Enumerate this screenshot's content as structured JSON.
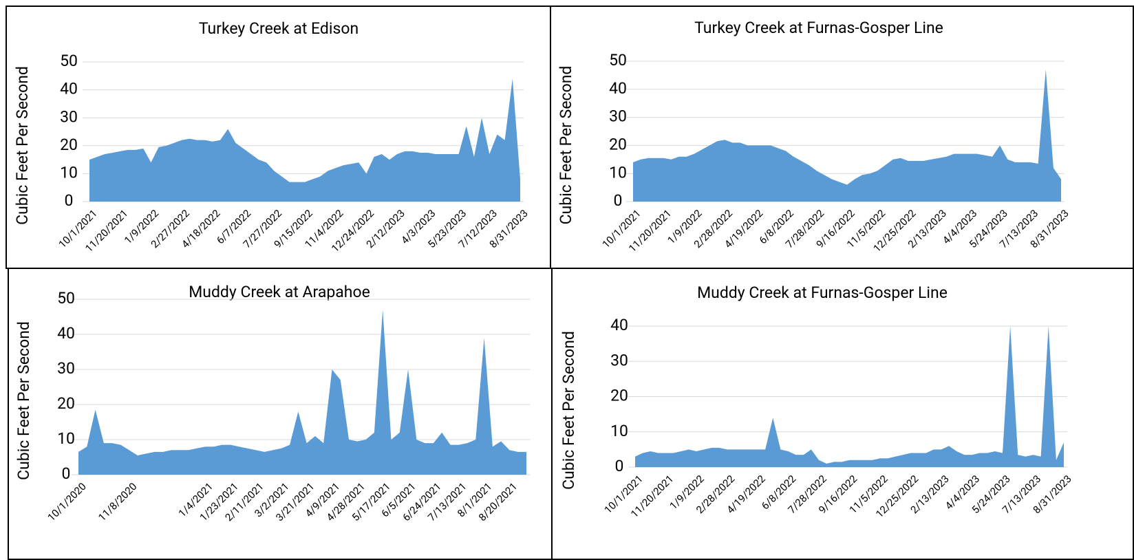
{
  "chart_data": [
    {
      "type": "area",
      "title": "Turkey Creek at Edison",
      "y_label": "Cubic Feet Per Second",
      "color": "#5b9bd5",
      "ylim": [
        0,
        50
      ],
      "yticks": [
        0,
        10,
        20,
        30,
        40,
        50
      ],
      "grid": true,
      "categories": [
        "10/1/2021",
        null,
        null,
        null,
        "11/20/2021",
        null,
        null,
        null,
        "1/9/2022",
        null,
        null,
        null,
        "2/27/2022",
        null,
        null,
        null,
        "4/18/2022",
        null,
        null,
        null,
        "6/7/2022",
        null,
        null,
        null,
        "7/27/2022",
        null,
        null,
        null,
        "9/15/2022",
        null,
        null,
        null,
        "11/4/2022",
        null,
        null,
        null,
        "12/24/2022",
        null,
        null,
        null,
        "2/12/2023",
        null,
        null,
        null,
        "4/3/2023",
        null,
        null,
        null,
        "5/23/2023",
        null,
        null,
        null,
        "7/12/2023",
        null,
        null,
        null,
        "8/31/2023"
      ],
      "values": [
        15,
        16,
        17,
        17.5,
        18,
        18.5,
        18.5,
        19,
        14,
        19.5,
        20,
        21,
        22,
        22.5,
        22,
        22,
        21.5,
        22,
        26,
        21,
        19,
        17,
        15,
        14,
        11,
        9,
        7,
        7,
        7,
        8,
        9,
        11,
        12,
        13,
        13.5,
        14,
        10,
        16,
        17,
        15,
        17,
        18,
        18,
        17.5,
        17.5,
        17,
        17,
        17,
        17,
        27,
        16,
        30,
        17,
        24,
        22,
        44,
        8
      ]
    },
    {
      "type": "area",
      "title": "Turkey Creek at Furnas-Gosper Line",
      "y_label": "Cubic Feet Per Second",
      "color": "#5b9bd5",
      "ylim": [
        0,
        50
      ],
      "yticks": [
        0,
        10,
        20,
        30,
        40,
        50
      ],
      "grid": true,
      "categories": [
        "10/1/2021",
        null,
        null,
        null,
        "11/20/2021",
        null,
        null,
        null,
        "1/9/2022",
        null,
        null,
        null,
        "2/28/2022",
        null,
        null,
        null,
        "4/19/2022",
        null,
        null,
        null,
        "6/8/2022",
        null,
        null,
        null,
        "7/28/2022",
        null,
        null,
        null,
        "9/16/2022",
        null,
        null,
        null,
        "11/5/2022",
        null,
        null,
        null,
        "12/25/2022",
        null,
        null,
        null,
        "2/13/2023",
        null,
        null,
        null,
        "4/4/2023",
        null,
        null,
        null,
        "5/24/2023",
        null,
        null,
        null,
        "7/13/2023",
        null,
        null,
        null,
        "8/31/2023"
      ],
      "values": [
        14,
        15,
        15.5,
        15.5,
        15.5,
        15,
        16,
        16,
        17,
        18.5,
        20,
        21.5,
        22,
        21,
        21,
        20,
        20,
        20,
        20,
        19,
        18,
        16,
        14.5,
        13,
        11,
        9.5,
        8,
        7,
        6,
        8,
        9.5,
        10,
        11,
        13,
        15,
        15.5,
        14.5,
        14.5,
        14.5,
        15,
        15.5,
        16,
        17,
        17,
        17,
        17,
        16.5,
        16,
        20,
        15,
        14,
        14,
        14,
        13.5,
        47,
        12,
        8
      ]
    },
    {
      "type": "area",
      "title": "Muddy Creek at Arapahoe",
      "y_label": "Cubic Feet Per Second",
      "color": "#5b9bd5",
      "ylim": [
        0,
        50
      ],
      "yticks": [
        0,
        10,
        20,
        30,
        40,
        50
      ],
      "grid": true,
      "categories": [
        "10/1/2020",
        null,
        null,
        null,
        null,
        null,
        "11/8/2020",
        null,
        null,
        null,
        null,
        null,
        null,
        null,
        null,
        "1/4/2021",
        null,
        null,
        "1/23/2021",
        null,
        null,
        "2/11/2021",
        null,
        null,
        "3/2/2021",
        null,
        null,
        "3/21/2021",
        null,
        null,
        "4/9/2021",
        null,
        null,
        "4/28/2021",
        null,
        null,
        "5/17/2021",
        null,
        null,
        "6/5/2021",
        null,
        null,
        "6/24/2021",
        null,
        null,
        "7/13/2021",
        null,
        null,
        "8/1/2021",
        null,
        null,
        "8/20/2021",
        null,
        null
      ],
      "values": [
        6.5,
        8,
        18.5,
        9,
        9,
        8.5,
        7,
        5.5,
        6,
        6.5,
        6.5,
        7,
        7,
        7,
        7.5,
        8,
        8,
        8.5,
        8.5,
        8,
        7.5,
        7,
        6.5,
        7,
        7.5,
        8.5,
        18,
        9,
        11,
        9,
        30,
        27,
        10,
        9.5,
        10,
        12,
        47,
        10,
        12,
        30,
        10,
        9,
        9,
        12,
        8.5,
        8.5,
        9,
        10,
        39,
        8,
        9.5,
        7,
        6.5,
        6.5
      ]
    },
    {
      "type": "area",
      "title": "Muddy Creek at Furnas-Gosper Line",
      "y_label": "Cubic Feet Per Second",
      "color": "#5b9bd5",
      "ylim": [
        0,
        40
      ],
      "yticks": [
        0,
        10,
        20,
        30,
        40
      ],
      "grid": true,
      "categories": [
        "10/1/2021",
        null,
        null,
        null,
        "11/20/2021",
        null,
        null,
        null,
        "1/9/2022",
        null,
        null,
        null,
        "2/28/2022",
        null,
        null,
        null,
        "4/19/2022",
        null,
        null,
        null,
        "6/8/2022",
        null,
        null,
        null,
        "7/28/2022",
        null,
        null,
        null,
        "9/16/2022",
        null,
        null,
        null,
        "11/5/2022",
        null,
        null,
        null,
        "12/25/2022",
        null,
        null,
        null,
        "2/13/2023",
        null,
        null,
        null,
        "4/4/2023",
        null,
        null,
        null,
        "5/24/2023",
        null,
        null,
        null,
        "7/13/2023",
        null,
        null,
        null,
        "8/31/2023"
      ],
      "values": [
        3,
        4,
        4.5,
        4,
        4,
        4,
        4.5,
        5,
        4.5,
        5,
        5.5,
        5.5,
        5,
        5,
        5,
        5,
        5,
        5,
        14,
        5,
        4.5,
        3.5,
        3.5,
        5,
        2,
        1,
        1.5,
        1.5,
        2,
        2,
        2,
        2,
        2.5,
        2.5,
        3,
        3.5,
        4,
        4,
        4,
        5,
        5,
        6,
        4.5,
        3.5,
        3.5,
        4,
        4,
        4.5,
        4,
        40,
        3.5,
        3,
        3.5,
        3,
        40,
        2,
        7
      ]
    }
  ]
}
